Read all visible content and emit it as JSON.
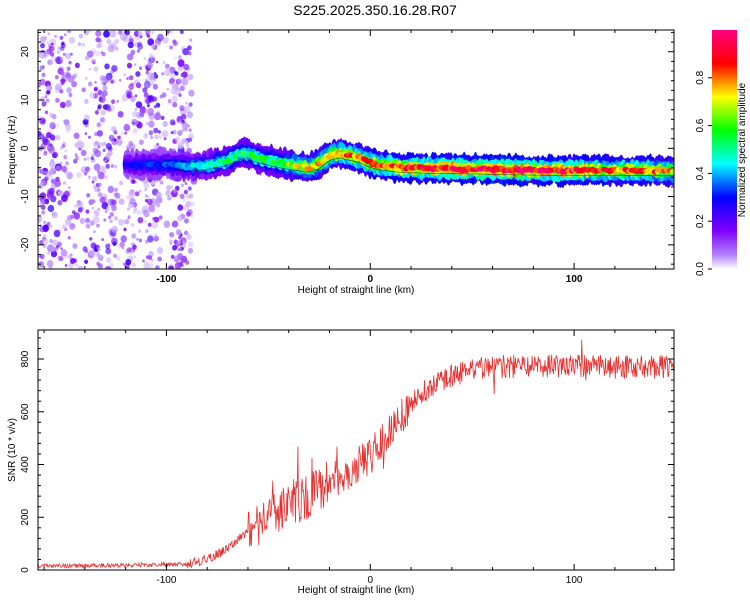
{
  "title": "S225.2025.350.16.28.R07",
  "chart_data": [
    {
      "type": "heatmap",
      "name": "spectrogram",
      "xlabel": "Height of straight line (km)",
      "ylabel": "Frequency (Hz)",
      "xlim": [
        -163,
        149
      ],
      "ylim": [
        -25,
        24.5
      ],
      "xticks": [
        -100,
        0,
        100
      ],
      "yticks": [
        -20,
        -10,
        0,
        10,
        20
      ],
      "colorbar": {
        "label": "Normalized spectral amplitude",
        "range": [
          0,
          1
        ],
        "ticks": [
          0.0,
          0.2,
          0.4,
          0.6,
          0.8
        ],
        "colors": [
          "#ffffff",
          "#7f00ff",
          "#0000ff",
          "#00ffff",
          "#00ff00",
          "#ffff00",
          "#ff0000",
          "#ff0080"
        ]
      },
      "ridge": {
        "description": "dominant frequency vs height",
        "x": [
          -163,
          -140,
          -120,
          -100,
          -90,
          -80,
          -70,
          -62,
          -55,
          -45,
          -38,
          -30,
          -25,
          -20,
          -15,
          -10,
          -5,
          0,
          5,
          15,
          30,
          50,
          70,
          90,
          110,
          130,
          149
        ],
        "y": [
          -3.5,
          -3.2,
          -3.5,
          -3.3,
          -3.8,
          -3.5,
          -2.5,
          -1.0,
          -2.0,
          -3.0,
          -3.5,
          -4.0,
          -3.2,
          -1.5,
          -1.0,
          -1.5,
          -2.0,
          -3.0,
          -3.5,
          -4.0,
          -4.2,
          -4.3,
          -4.5,
          -4.6,
          -4.6,
          -4.6,
          -4.7
        ],
        "amplitude": [
          0.15,
          0.2,
          0.3,
          0.35,
          0.42,
          0.5,
          0.55,
          0.6,
          0.55,
          0.6,
          0.7,
          0.8,
          0.78,
          0.75,
          0.82,
          0.85,
          0.8,
          0.85,
          0.88,
          0.9,
          0.92,
          0.95,
          0.98,
          0.95,
          0.9,
          0.85,
          0.8
        ]
      },
      "noise_region_x": [
        -163,
        -88
      ]
    },
    {
      "type": "line",
      "name": "snr",
      "xlabel": "Height of straight line (km)",
      "ylabel": "SNR (10 * v/v)",
      "xlim": [
        -163,
        149
      ],
      "ylim": [
        0,
        910
      ],
      "xticks": [
        -100,
        0,
        100
      ],
      "yticks": [
        0,
        200,
        400,
        600,
        800
      ],
      "color": "#e83030",
      "trend": {
        "x": [
          -163,
          -120,
          -90,
          -80,
          -70,
          -60,
          -50,
          -40,
          -30,
          -20,
          -10,
          0,
          10,
          20,
          30,
          40,
          50,
          60,
          80,
          100,
          120,
          149
        ],
        "y": [
          15,
          18,
          22,
          40,
          80,
          150,
          190,
          250,
          280,
          330,
          380,
          430,
          530,
          630,
          700,
          740,
          760,
          770,
          775,
          775,
          770,
          770
        ]
      }
    }
  ]
}
